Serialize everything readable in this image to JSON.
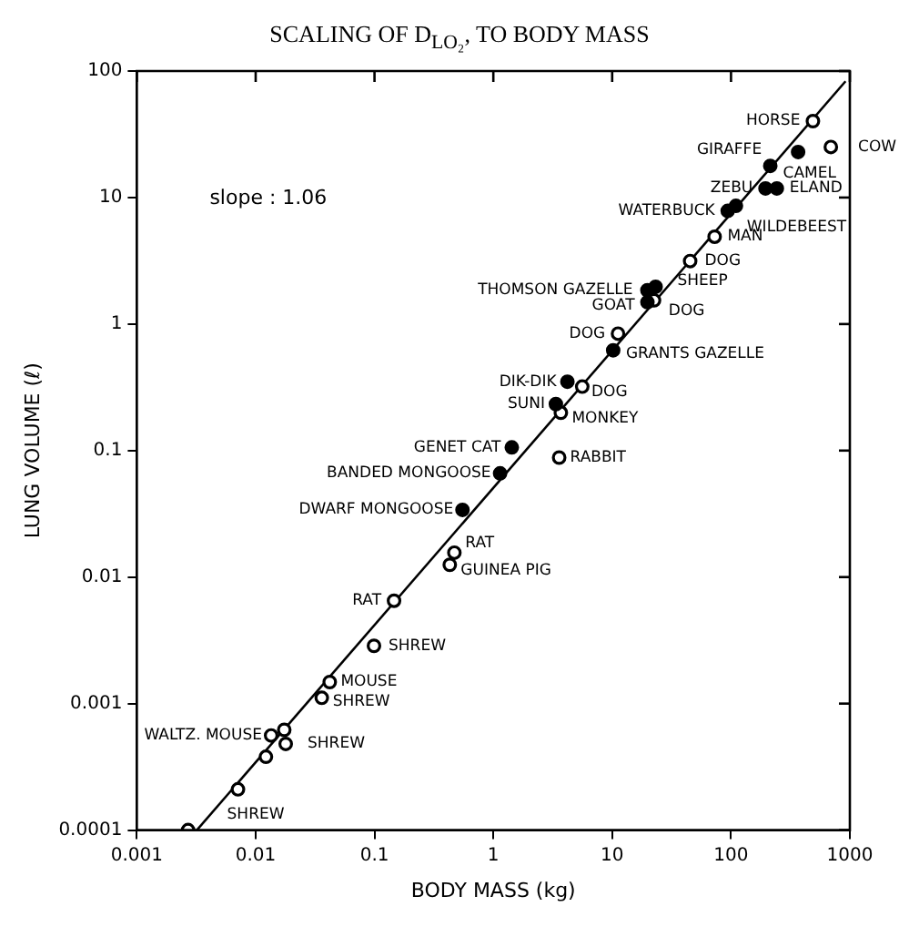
{
  "chart_data": {
    "type": "scatter",
    "title": "SCALING OF D$_{LO₂}$, TO BODY MASS",
    "xlabel": "BODY MASS (kg)",
    "ylabel": "LUNG VOLUME (ℓ)",
    "log": "xy",
    "grid": false,
    "legend": false,
    "xlim": [
      0.001,
      1000
    ],
    "ylim": [
      0.0001,
      100
    ],
    "xticks": [
      0.001,
      0.01,
      0.1,
      1,
      10,
      100,
      1000
    ],
    "yticks": [
      0.0001,
      0.001,
      0.01,
      0.1,
      1,
      10,
      100
    ],
    "series": [
      {
        "marker": "circle",
        "color": "#000000",
        "x": [
          367,
          214,
          195,
          243,
          93.8,
          110,
          19.8,
          23.2,
          19.8,
          10.2,
          4.2,
          3.36,
          1.43,
          1.14,
          0.55
        ],
        "values": [
          22.9,
          17.8,
          11.8,
          11.8,
          7.85,
          8.6,
          1.85,
          1.97,
          1.49,
          0.62,
          0.35,
          0.233,
          0.106,
          0.066,
          0.034
        ]
      },
      {
        "marker": "circle",
        "color": "#000000",
        "x": [
          489,
          692,
          72.8,
          45.3,
          22.5,
          11.2,
          5.6,
          3.7,
          3.58,
          0.47,
          0.43,
          0.146,
          0.099,
          0.042,
          0.036,
          0.0135,
          0.0174,
          0.0179,
          0.0122,
          0.0071,
          0.0027
        ],
        "values": [
          40.2,
          25.1,
          4.9,
          3.15,
          1.54,
          0.84,
          0.32,
          0.199,
          0.088,
          0.0156,
          0.0125,
          0.0065,
          0.00286,
          0.00148,
          0.00111,
          0.00056,
          0.00062,
          0.00048,
          0.00038,
          0.00021,
          0.0001
        ]
      },
      {
        "type": "line",
        "marker": "none",
        "color": "#000000",
        "x": [
          0.0032,
          920
        ],
        "values": [
          0.0001,
          83
        ]
      }
    ],
    "annotations": [
      "slope : 1.06",
      {
        "text": "HORSE",
        "x": 489,
        "y": 40.2
      },
      {
        "text": "COW",
        "x": 692,
        "y": 25.1
      },
      {
        "text": "GIRAFFE",
        "x": 367,
        "y": 22.9
      },
      {
        "text": "CAMEL",
        "x": 214,
        "y": 17.8
      },
      {
        "text": "ZEBU",
        "x": 195,
        "y": 11.8
      },
      {
        "text": "ELAND",
        "x": 243,
        "y": 11.8
      },
      {
        "text": "WATERBUCK",
        "x": 93.8,
        "y": 7.85
      },
      {
        "text": "WILDEBEEST",
        "x": 110,
        "y": 8.6
      },
      {
        "text": "MAN",
        "x": 72.8,
        "y": 4.9
      },
      {
        "text": "DOG",
        "x": 45.3,
        "y": 3.15
      },
      {
        "text": "THOMSON GAZELLE",
        "x": 19.8,
        "y": 1.85
      },
      {
        "text": "SHEEP",
        "x": 23.2,
        "y": 1.97
      },
      {
        "text": "GOAT",
        "x": 19.8,
        "y": 1.49
      },
      {
        "text": "DOG",
        "x": 22.5,
        "y": 1.54
      },
      {
        "text": "DOG",
        "x": 11.2,
        "y": 0.84
      },
      {
        "text": "GRANTS GAZELLE",
        "x": 10.2,
        "y": 0.62
      },
      {
        "text": "DIK-DIK",
        "x": 4.2,
        "y": 0.35
      },
      {
        "text": "DOG",
        "x": 5.6,
        "y": 0.32
      },
      {
        "text": "SUNI",
        "x": 3.36,
        "y": 0.233
      },
      {
        "text": "MONKEY",
        "x": 3.7,
        "y": 0.199
      },
      {
        "text": "GENET CAT",
        "x": 1.43,
        "y": 0.106
      },
      {
        "text": "RABBIT",
        "x": 3.58,
        "y": 0.088
      },
      {
        "text": "BANDED MONGOOSE",
        "x": 1.14,
        "y": 0.066
      },
      {
        "text": "DWARF MONGOOSE",
        "x": 0.55,
        "y": 0.034
      },
      {
        "text": "RAT",
        "x": 0.47,
        "y": 0.0156
      },
      {
        "text": "GUINEA PIG",
        "x": 0.43,
        "y": 0.0125
      },
      {
        "text": "RAT",
        "x": 0.146,
        "y": 0.0065
      },
      {
        "text": "SHREW",
        "x": 0.099,
        "y": 0.00286
      },
      {
        "text": "MOUSE",
        "x": 0.042,
        "y": 0.00148
      },
      {
        "text": "SHREW",
        "x": 0.036,
        "y": 0.00111
      },
      {
        "text": "WALTZ. MOUSE",
        "x": 0.0135,
        "y": 0.00056
      },
      {
        "text": "SHREW",
        "x": 0.0179,
        "y": 0.00048
      },
      {
        "text": "SHREW",
        "x": 0.0071,
        "y": 0.00021
      }
    ]
  }
}
